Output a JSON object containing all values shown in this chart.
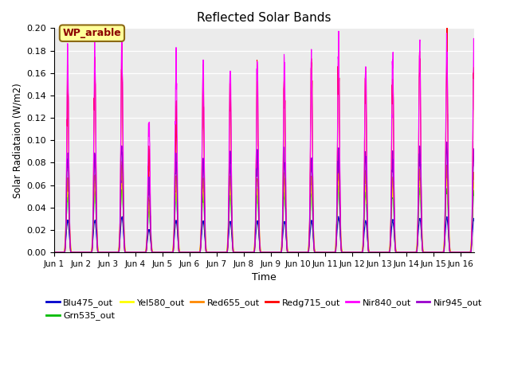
{
  "title": "Reflected Solar Bands",
  "xlabel": "Time",
  "ylabel": "Solar Radiataion (W/m2)",
  "ylim": [
    0,
    0.2
  ],
  "yticks": [
    0.0,
    0.02,
    0.04,
    0.06,
    0.08,
    0.1,
    0.12,
    0.14,
    0.16,
    0.18,
    0.2
  ],
  "annotation": "WP_arable",
  "annotation_color": "#8B0000",
  "annotation_bg": "#FFFF99",
  "annotation_border": "#8B6914",
  "bg_color": "#EBEBEB",
  "series": [
    {
      "name": "Blu475_out",
      "color": "#0000CC",
      "scale": 0.032
    },
    {
      "name": "Grn535_out",
      "color": "#00BB00",
      "scale": 0.06
    },
    {
      "name": "Yel580_out",
      "color": "#FFFF00",
      "scale": 0.066
    },
    {
      "name": "Red655_out",
      "color": "#FF8800",
      "scale": 0.075
    },
    {
      "name": "Redg715_out",
      "color": "#FF0000",
      "scale": 0.182
    },
    {
      "name": "Nir840_out",
      "color": "#FF00FF",
      "scale": 0.192
    },
    {
      "name": "Nir945_out",
      "color": "#9900CC",
      "scale": 0.095
    }
  ],
  "xtick_labels": [
    "Jun 1",
    "Jun 2",
    "Jun 3",
    "Jun 4",
    "Jun 5",
    "Jun 6",
    "Jun 7",
    "Jun 8",
    "Jun 9",
    "Jun 10",
    "Jun 11",
    "Jun 12",
    "Jun 13",
    "Jun 14",
    "Jun 15",
    "Jun 16"
  ],
  "grid_color": "#FFFFFF",
  "n_days": 16,
  "points_per_day": 144,
  "cloud_factors_nir840": [
    0.88,
    0.9,
    0.98,
    0.63,
    0.88,
    0.86,
    0.86,
    0.87,
    0.88,
    0.87,
    0.97,
    0.89,
    0.89,
    0.96,
    0.97,
    0.93
  ],
  "cloud_factors_red": [
    0.88,
    0.9,
    0.98,
    0.52,
    0.7,
    0.86,
    0.86,
    0.87,
    0.88,
    0.98,
    0.97,
    0.89,
    0.89,
    0.96,
    0.97,
    0.93
  ],
  "cloud_factors_nir945": [
    0.88,
    0.9,
    0.98,
    0.63,
    0.88,
    0.86,
    0.86,
    0.87,
    0.88,
    0.87,
    0.97,
    0.89,
    0.89,
    0.96,
    0.97,
    0.93
  ],
  "cloud_factors_small": [
    0.88,
    0.9,
    0.98,
    0.63,
    0.88,
    0.86,
    0.86,
    0.87,
    0.88,
    0.87,
    0.97,
    0.89,
    0.89,
    0.96,
    0.97,
    0.93
  ]
}
